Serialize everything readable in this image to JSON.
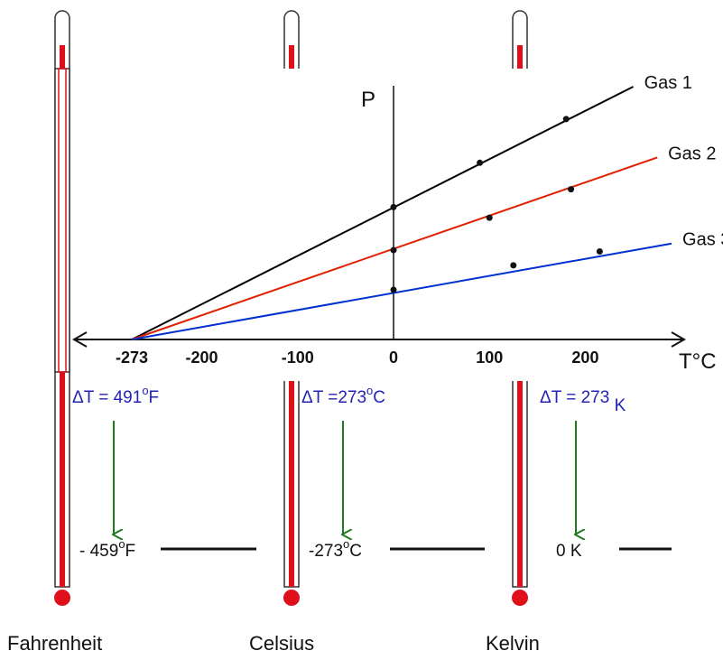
{
  "chart_data": {
    "type": "line",
    "xlabel": "T°C",
    "ylabel": "P",
    "x_ticks": [
      "-273",
      "-200",
      "-100",
      "0",
      "100",
      "200"
    ],
    "x_tick_values": [
      -273,
      -200,
      -100,
      0,
      100,
      200
    ],
    "xlim": [
      -290,
      310
    ],
    "ylim": [
      0,
      3.8
    ],
    "series": [
      {
        "name": "Gas 1",
        "color": "#000000",
        "points": [
          [
            -273,
            0
          ],
          [
            250,
            3.82
          ]
        ],
        "markers": [
          [
            0,
            2.0
          ],
          [
            90,
            2.67
          ],
          [
            180,
            3.33
          ]
        ]
      },
      {
        "name": "Gas 2",
        "color": "#e02000",
        "points": [
          [
            -273,
            0
          ],
          [
            275,
            2.75
          ]
        ],
        "markers": [
          [
            0,
            1.35
          ],
          [
            100,
            1.84
          ],
          [
            185,
            2.27
          ]
        ]
      },
      {
        "name": "Gas 3",
        "color": "#0030d0",
        "points": [
          [
            -273,
            0
          ],
          [
            290,
            1.45
          ]
        ],
        "markers": [
          [
            0,
            0.75
          ],
          [
            125,
            1.12
          ],
          [
            215,
            1.33
          ]
        ]
      }
    ]
  },
  "thermometers": [
    {
      "scale_label": "Fahrenheit",
      "delta_text": "ΔT = 491",
      "delta_sup": "o",
      "delta_unit": "F",
      "zero_text": "- 459",
      "zero_sup": "o",
      "zero_unit": "F"
    },
    {
      "scale_label": "Celsius",
      "delta_text": "ΔT =273",
      "delta_sup": "o",
      "delta_unit": "C",
      "zero_text": "-273",
      "zero_sup": "o",
      "zero_unit": "C"
    },
    {
      "scale_label": "Kelvin",
      "delta_text": "ΔT = 273",
      "delta_sup": "",
      "delta_unit": " K",
      "zero_text": "0 K",
      "zero_sup": "",
      "zero_unit": ""
    }
  ],
  "colors": {
    "thermometer_red": "#e0101a",
    "arrow_green": "#1f7a1f",
    "delta_blue": "#2323b4"
  }
}
